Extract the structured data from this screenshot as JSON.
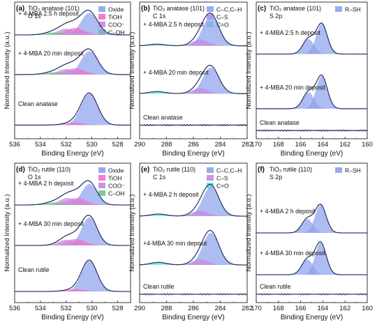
{
  "colors": {
    "oxide": "#8ea2ec",
    "tioh": "#ef6fc8",
    "coo": "#c58ae0",
    "coh": "#72c486",
    "cc": "#8ea2ec",
    "cs": "#c58ae0",
    "co": "#5fe0e6",
    "rsh": "#8ea2ec",
    "envelope": "#222a55",
    "data": "#2a2f6e"
  },
  "chart_data": [
    {
      "id": "a",
      "type": "line",
      "panel_label": "(a)",
      "title_lines": [
        "TiO₂ anatase (101)",
        "O 1s"
      ],
      "xlabel": "Binding Energy (eV)",
      "ylabel": "Normalized Intensity (a.u.)",
      "xlim": [
        536,
        527
      ],
      "xticks": [
        "536",
        "534",
        "532",
        "530",
        "528"
      ],
      "legend": [
        {
          "name": "Oxide",
          "color": "oxide"
        },
        {
          "name": "TiOH",
          "color": "tioh"
        },
        {
          "name": "COO⁻",
          "color": "coo"
        },
        {
          "name": "C–OH",
          "color": "coh"
        }
      ],
      "traces": [
        {
          "label": "+ 4-MBA 2.5 h deposit",
          "baseline": 0.76,
          "components": [
            {
              "c": 530.2,
              "a": 0.16,
              "w": 0.65,
              "color": "oxide"
            },
            {
              "c": 531.3,
              "a": 0.05,
              "w": 0.75,
              "color": "tioh"
            },
            {
              "c": 532.0,
              "a": 0.045,
              "w": 0.65,
              "color": "coo"
            },
            {
              "c": 533.0,
              "a": 0.018,
              "w": 0.7,
              "color": "coh"
            }
          ]
        },
        {
          "label": "+ 4-MBA 20 min deposit",
          "baseline": 0.47,
          "components": [
            {
              "c": 530.2,
              "a": 0.17,
              "w": 0.65,
              "color": "oxide"
            },
            {
              "c": 531.3,
              "a": 0.045,
              "w": 0.75,
              "color": "tioh"
            },
            {
              "c": 532.0,
              "a": 0.04,
              "w": 0.65,
              "color": "coo"
            },
            {
              "c": 533.0,
              "a": 0.016,
              "w": 0.7,
              "color": "coh"
            }
          ]
        },
        {
          "label": "Clean anatase",
          "baseline": 0.1,
          "components": [
            {
              "c": 530.2,
              "a": 0.23,
              "w": 0.65,
              "color": "oxide"
            },
            {
              "c": 531.4,
              "a": 0.018,
              "w": 0.75,
              "color": "tioh"
            }
          ]
        }
      ]
    },
    {
      "id": "b",
      "type": "line",
      "panel_label": "(b)",
      "title_lines": [
        "TiO₂ anatase (101)",
        "C 1s"
      ],
      "xlabel": "Binding Energy (eV)",
      "ylabel": "Normalized Intensity (a.u.)",
      "xlim": [
        290,
        282
      ],
      "xticks": [
        "290",
        "288",
        "286",
        "284",
        "282"
      ],
      "legend": [
        {
          "name": "C–C,C–H",
          "color": "cc"
        },
        {
          "name": "C–S",
          "color": "cs"
        },
        {
          "name": "C=O",
          "color": "co"
        }
      ],
      "traces": [
        {
          "label": "+ 4-MBA 2.5 h deposit",
          "baseline": 0.68,
          "components": [
            {
              "c": 284.7,
              "a": 0.22,
              "w": 0.6,
              "color": "cc"
            },
            {
              "c": 285.5,
              "a": 0.045,
              "w": 0.6,
              "color": "cs"
            },
            {
              "c": 288.7,
              "a": 0.012,
              "w": 0.6,
              "color": "co"
            }
          ]
        },
        {
          "label": "+ 4-MBA 20 min deposit",
          "baseline": 0.33,
          "components": [
            {
              "c": 284.7,
              "a": 0.19,
              "w": 0.6,
              "color": "cc"
            },
            {
              "c": 285.5,
              "a": 0.04,
              "w": 0.6,
              "color": "cs"
            },
            {
              "c": 288.7,
              "a": 0.015,
              "w": 0.6,
              "color": "co"
            }
          ]
        },
        {
          "label": "Clean anatase",
          "baseline": 0.1,
          "components": []
        }
      ]
    },
    {
      "id": "c",
      "type": "line",
      "panel_label": "(c)",
      "title_lines": [
        "TiO₂ anatase (101)",
        "S 2p"
      ],
      "xlabel": "Binding Energy (eV)",
      "ylabel": "Normalized Intensity (a.u.)",
      "xlim": [
        170,
        160
      ],
      "xticks": [
        "170",
        "168",
        "166",
        "164",
        "162",
        "160"
      ],
      "legend": [
        {
          "name": "R–SH",
          "color": "rsh"
        }
      ],
      "traces": [
        {
          "label": "+ 4-MBA 2.5 h deposit",
          "baseline": 0.62,
          "components": [
            {
              "c": 164.1,
              "a": 0.22,
              "w": 0.5,
              "color": "rsh"
            },
            {
              "c": 165.3,
              "a": 0.11,
              "w": 0.5,
              "color": "rsh"
            }
          ]
        },
        {
          "label": "+ 4-MBA 20 min deposit",
          "baseline": 0.22,
          "components": [
            {
              "c": 164.1,
              "a": 0.24,
              "w": 0.5,
              "color": "rsh"
            },
            {
              "c": 165.3,
              "a": 0.12,
              "w": 0.5,
              "color": "rsh"
            }
          ]
        },
        {
          "label": "Clean anatase",
          "baseline": 0.06,
          "components": []
        }
      ]
    },
    {
      "id": "d",
      "type": "line",
      "panel_label": "(d)",
      "title_lines": [
        "TiO₂ rutile (110)",
        "O 1s"
      ],
      "xlabel": "Binding Energy (eV)",
      "ylabel": "Normalized Intensity (a.u.)",
      "xlim": [
        536,
        527
      ],
      "xticks": [
        "536",
        "534",
        "532",
        "530",
        "528"
      ],
      "legend": [
        {
          "name": "Oxide",
          "color": "oxide"
        },
        {
          "name": "TiOH",
          "color": "tioh"
        },
        {
          "name": "COO⁻",
          "color": "coo"
        },
        {
          "name": "C–OH",
          "color": "coh"
        }
      ],
      "traces": [
        {
          "label": "+ 4-MBA 2 h deposit",
          "baseline": 0.7,
          "components": [
            {
              "c": 530.2,
              "a": 0.15,
              "w": 0.6,
              "color": "oxide"
            },
            {
              "c": 531.2,
              "a": 0.05,
              "w": 0.75,
              "color": "tioh"
            },
            {
              "c": 531.9,
              "a": 0.05,
              "w": 0.65,
              "color": "coo"
            },
            {
              "c": 533.0,
              "a": 0.018,
              "w": 0.7,
              "color": "coh"
            }
          ]
        },
        {
          "label": "+ 4-MBA 30 min deposit",
          "baseline": 0.41,
          "components": [
            {
              "c": 530.2,
              "a": 0.2,
              "w": 0.6,
              "color": "oxide"
            },
            {
              "c": 531.3,
              "a": 0.045,
              "w": 0.75,
              "color": "tioh"
            },
            {
              "c": 532.0,
              "a": 0.04,
              "w": 0.65,
              "color": "coo"
            }
          ]
        },
        {
          "label": "Clean rutile",
          "baseline": 0.08,
          "components": [
            {
              "c": 530.2,
              "a": 0.22,
              "w": 0.6,
              "color": "oxide"
            },
            {
              "c": 531.3,
              "a": 0.015,
              "w": 0.75,
              "color": "tioh"
            }
          ]
        }
      ]
    },
    {
      "id": "e",
      "type": "line",
      "panel_label": "(e)",
      "title_lines": [
        "TiO₂ rutile (110)",
        "C 1s"
      ],
      "xlabel": "Binding Energy (eV)",
      "ylabel": "Normalized Intensity (a.u.)",
      "xlim": [
        290,
        282
      ],
      "xticks": [
        "290",
        "288",
        "286",
        "284",
        "282"
      ],
      "legend": [
        {
          "name": "C–C,C–H",
          "color": "cc"
        },
        {
          "name": "C–S",
          "color": "cs"
        },
        {
          "name": "C=O",
          "color": "co"
        }
      ],
      "traces": [
        {
          "label": "+ 4-MBA 2 h deposit",
          "baseline": 0.62,
          "components": [
            {
              "c": 284.7,
              "a": 0.21,
              "w": 0.6,
              "color": "cc"
            },
            {
              "c": 285.5,
              "a": 0.04,
              "w": 0.6,
              "color": "cs"
            },
            {
              "c": 288.6,
              "a": 0.015,
              "w": 0.6,
              "color": "co"
            }
          ]
        },
        {
          "label": "+4-MBA 30 min deposit",
          "baseline": 0.27,
          "components": [
            {
              "c": 284.7,
              "a": 0.23,
              "w": 0.6,
              "color": "cc"
            },
            {
              "c": 285.5,
              "a": 0.04,
              "w": 0.6,
              "color": "cs"
            },
            {
              "c": 288.6,
              "a": 0.018,
              "w": 0.6,
              "color": "co"
            }
          ]
        },
        {
          "label": "Clean rutile",
          "baseline": 0.06,
          "components": []
        }
      ]
    },
    {
      "id": "f",
      "type": "line",
      "panel_label": "(f)",
      "title_lines": [
        "TiO₂ rutile (110)",
        "S 2p"
      ],
      "xlabel": "Binding Energy (eV)",
      "ylabel": "Normalized Intensity (a.u.)",
      "xlim": [
        170,
        160
      ],
      "xticks": [
        "170",
        "168",
        "166",
        "164",
        "162",
        "160"
      ],
      "legend": [
        {
          "name": "R–SH",
          "color": "rsh"
        }
      ],
      "traces": [
        {
          "label": "+ 4-MBA 2 h deposit",
          "baseline": 0.5,
          "components": [
            {
              "c": 164.2,
              "a": 0.2,
              "w": 0.5,
              "color": "rsh"
            },
            {
              "c": 165.4,
              "a": 0.1,
              "w": 0.5,
              "color": "rsh"
            }
          ]
        },
        {
          "label": "+ 4-MBA 30 min deposit",
          "baseline": 0.2,
          "components": [
            {
              "c": 164.2,
              "a": 0.23,
              "w": 0.5,
              "color": "rsh"
            },
            {
              "c": 165.4,
              "a": 0.11,
              "w": 0.5,
              "color": "rsh"
            }
          ]
        },
        {
          "label": "Clean rutile",
          "baseline": 0.06,
          "components": []
        }
      ]
    }
  ]
}
